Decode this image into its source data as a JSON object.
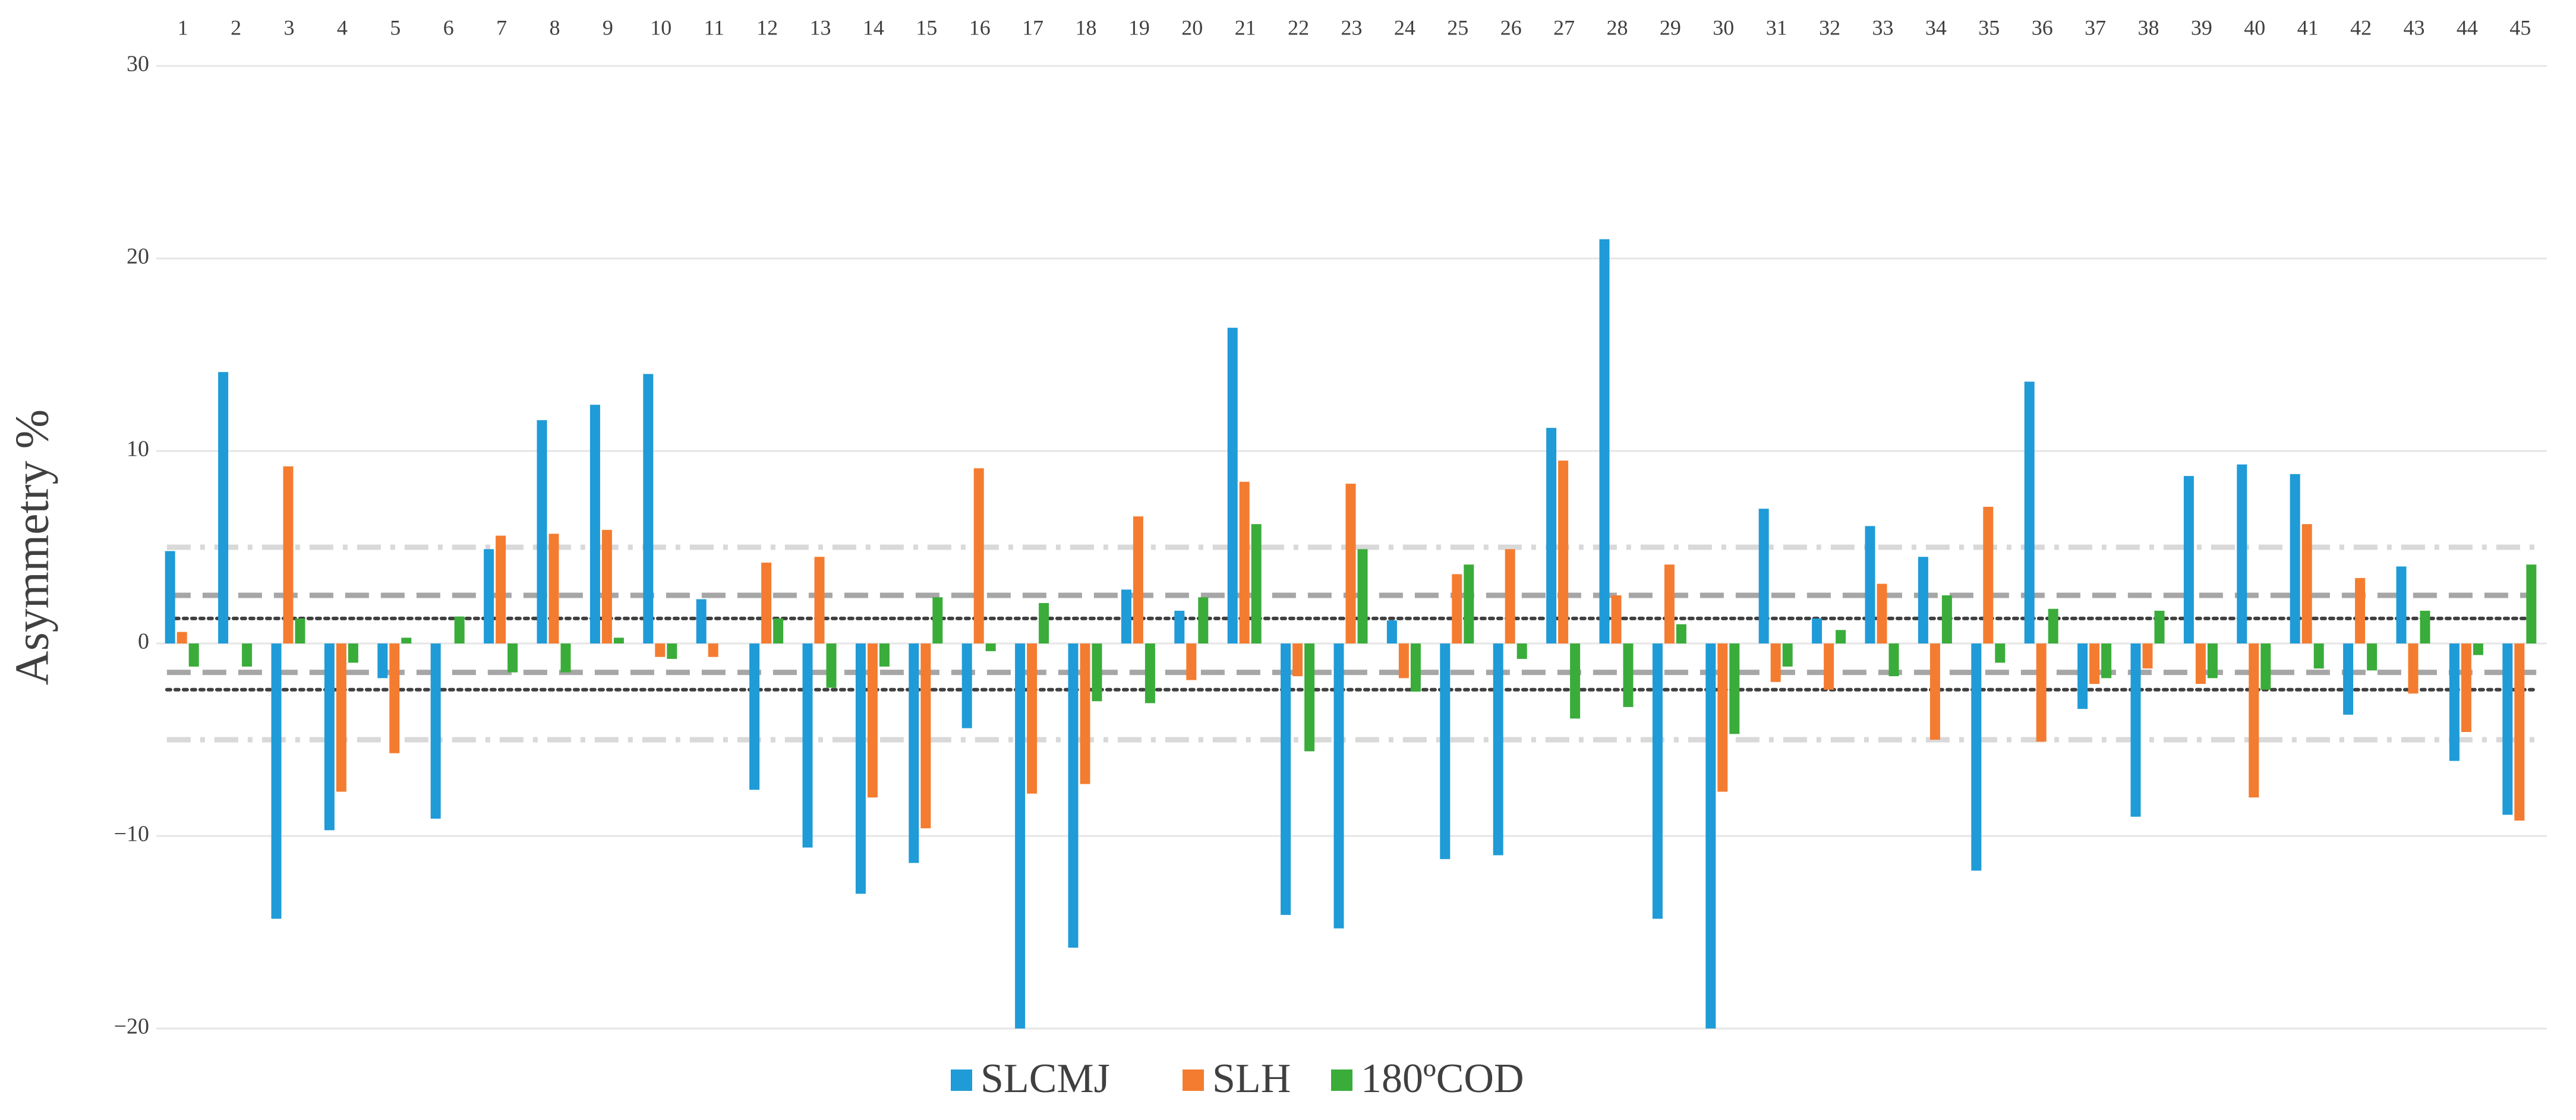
{
  "chart_data": {
    "type": "bar",
    "y_label": "Asymmetry %",
    "categories": [
      "1",
      "2",
      "3",
      "4",
      "5",
      "6",
      "7",
      "8",
      "9",
      "10",
      "11",
      "12",
      "13",
      "14",
      "15",
      "16",
      "17",
      "18",
      "19",
      "20",
      "21",
      "22",
      "23",
      "24",
      "25",
      "26",
      "27",
      "28",
      "29",
      "30",
      "31",
      "32",
      "33",
      "34",
      "35",
      "36",
      "37",
      "38",
      "39",
      "40",
      "41",
      "42",
      "43",
      "44",
      "45"
    ],
    "series": [
      {
        "name": "SLCMJ",
        "color": "#1f9bd7",
        "values": [
          4.8,
          14.1,
          -14.3,
          -9.7,
          -1.8,
          -9.1,
          4.9,
          11.6,
          12.4,
          14.0,
          2.3,
          -7.6,
          -10.6,
          -13.0,
          -11.4,
          -4.4,
          -20,
          -15.8,
          2.8,
          1.7,
          16.4,
          -14.1,
          -14.8,
          1.2,
          -11.2,
          -11.0,
          11.2,
          21.0,
          -14.3,
          -20,
          7.0,
          1.3,
          6.1,
          4.5,
          -11.8,
          13.6,
          -3.4,
          -9.0,
          8.7,
          9.3,
          8.8,
          -3.7,
          4.0,
          -6.1,
          -8.9
        ]
      },
      {
        "name": "SLH",
        "color": "#f47c30",
        "values": [
          0.6,
          0,
          9.2,
          -7.7,
          -5.7,
          0,
          5.6,
          5.7,
          5.9,
          -0.7,
          -0.7,
          4.2,
          4.5,
          -8.0,
          -9.6,
          9.1,
          -7.8,
          -7.3,
          6.6,
          -1.9,
          8.4,
          -1.7,
          8.3,
          -1.8,
          3.6,
          4.9,
          9.5,
          2.5,
          4.1,
          -7.7,
          -2.0,
          -2.4,
          3.1,
          -5.0,
          7.1,
          -5.1,
          -2.1,
          -1.3,
          -2.1,
          -8.0,
          6.2,
          3.4,
          -2.6,
          -4.6,
          -9.2
        ]
      },
      {
        "name": "180ºCOD",
        "color": "#3aac3a",
        "values": [
          -1.2,
          -1.2,
          1.3,
          -1.0,
          0.3,
          1.4,
          -1.5,
          -1.5,
          0.3,
          -0.8,
          0,
          1.3,
          -2.3,
          -1.2,
          2.4,
          -0.4,
          2.1,
          -3.0,
          -3.1,
          2.4,
          6.2,
          -5.6,
          4.9,
          -2.5,
          4.1,
          -0.8,
          -3.9,
          -3.3,
          1.0,
          -4.7,
          -1.2,
          0.7,
          -1.7,
          2.5,
          -1.0,
          1.8,
          -1.8,
          1.7,
          -1.8,
          -2.4,
          -1.3,
          -1.4,
          1.7,
          -0.6,
          4.1
        ]
      }
    ],
    "ylim": [
      -20,
      30
    ],
    "yticks": [
      -20,
      -10,
      0,
      10,
      20,
      30
    ],
    "ytick_labels": [
      {
        "value": -20,
        "label": "−20"
      },
      {
        "value": -10,
        "label": "−10"
      },
      {
        "value": 0,
        "label": "0"
      },
      {
        "value": 10,
        "label": "10"
      },
      {
        "value": 20,
        "label": "20"
      },
      {
        "value": 30,
        "label": "30"
      }
    ],
    "reference_lines": [
      {
        "value": 5,
        "style": "dashdot",
        "color": "#d9d9d9"
      },
      {
        "value": -5,
        "style": "dashdot",
        "color": "#d9d9d9"
      },
      {
        "value": 2.5,
        "style": "dashed",
        "color": "#a6a6a6"
      },
      {
        "value": -1.5,
        "style": "dashed",
        "color": "#a6a6a6"
      },
      {
        "value": 1.3,
        "style": "dotted",
        "color": "#404040"
      },
      {
        "value": -2.4,
        "style": "dotted",
        "color": "#404040"
      }
    ],
    "grid": true,
    "legend": "bottom"
  }
}
